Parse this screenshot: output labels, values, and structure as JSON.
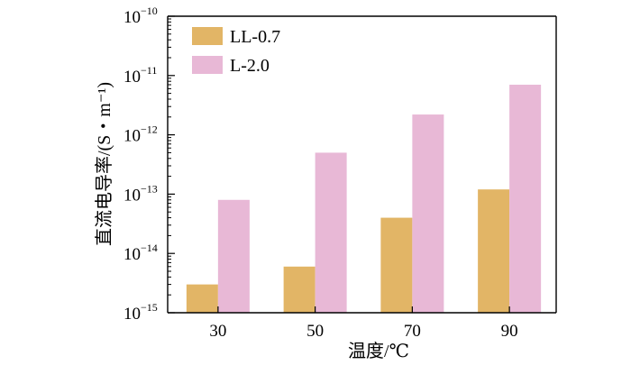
{
  "chart_data": {
    "type": "bar",
    "title": "",
    "xlabel": "温度/℃",
    "ylabel": "直流电导率/(S・m⁻¹)",
    "y_scale": "log",
    "ylim": [
      1e-15,
      1e-10
    ],
    "y_ticks": [
      {
        "value": 1e-15,
        "base": "10",
        "exp": "−15"
      },
      {
        "value": 1e-14,
        "base": "10",
        "exp": "−14"
      },
      {
        "value": 1e-13,
        "base": "10",
        "exp": "−13"
      },
      {
        "value": 1e-12,
        "base": "10",
        "exp": "−12"
      },
      {
        "value": 1e-11,
        "base": "10",
        "exp": "−11"
      },
      {
        "value": 1e-10,
        "base": "10",
        "exp": "−10"
      }
    ],
    "categories": [
      "30",
      "50",
      "70",
      "90"
    ],
    "series": [
      {
        "name": "LL-0.7",
        "color": "#e2b566",
        "values": [
          3e-15,
          6e-15,
          4e-14,
          1.2e-13
        ]
      },
      {
        "name": "L-2.0",
        "color": "#e8b8d6",
        "values": [
          8e-14,
          5e-13,
          2.2e-12,
          7e-12
        ]
      }
    ],
    "legend_position": "top-left",
    "grid": false
  }
}
